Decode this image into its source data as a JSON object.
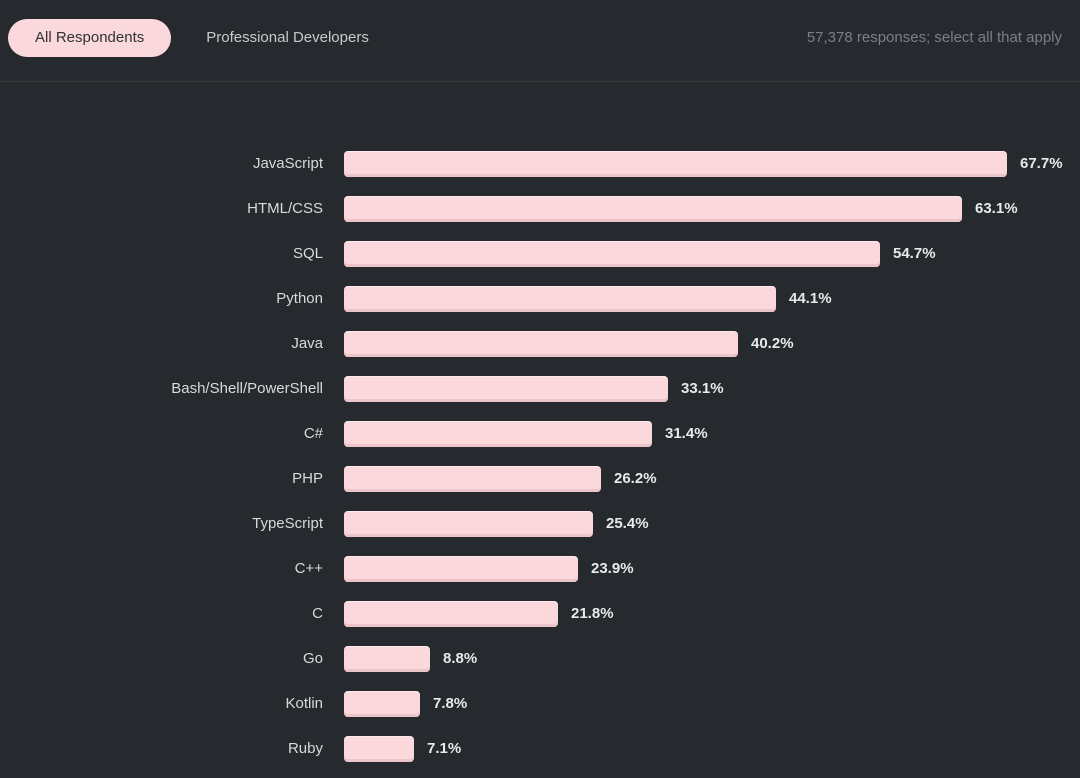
{
  "header": {
    "tabs": [
      {
        "label": "All Respondents",
        "active": true
      },
      {
        "label": "Professional Developers",
        "active": false
      }
    ],
    "note": "57,378 responses; select all that apply"
  },
  "colors": {
    "page_background": "#26292d",
    "bar_fill": "#fbd8db",
    "bar_bottom_edge": "#ecc5ca",
    "active_tab_background": "#fbd8db",
    "active_tab_text": "#2e3236",
    "inactive_tab_text": "#c6c9cd",
    "category_label_text": "#d7dadd",
    "value_label_text": "#e7e9eb",
    "note_text": "#7b8086",
    "divider": "#37393d"
  },
  "chart_data": {
    "type": "bar",
    "orientation": "horizontal",
    "grid": false,
    "legend": false,
    "xlim": [
      0,
      70
    ],
    "value_suffix": "%",
    "categories": [
      "JavaScript",
      "HTML/CSS",
      "SQL",
      "Python",
      "Java",
      "Bash/Shell/PowerShell",
      "C#",
      "PHP",
      "TypeScript",
      "C++",
      "C",
      "Go",
      "Kotlin",
      "Ruby"
    ],
    "values": [
      67.7,
      63.1,
      54.7,
      44.1,
      40.2,
      33.1,
      31.4,
      26.2,
      25.4,
      23.9,
      21.8,
      8.8,
      7.8,
      7.1
    ]
  }
}
